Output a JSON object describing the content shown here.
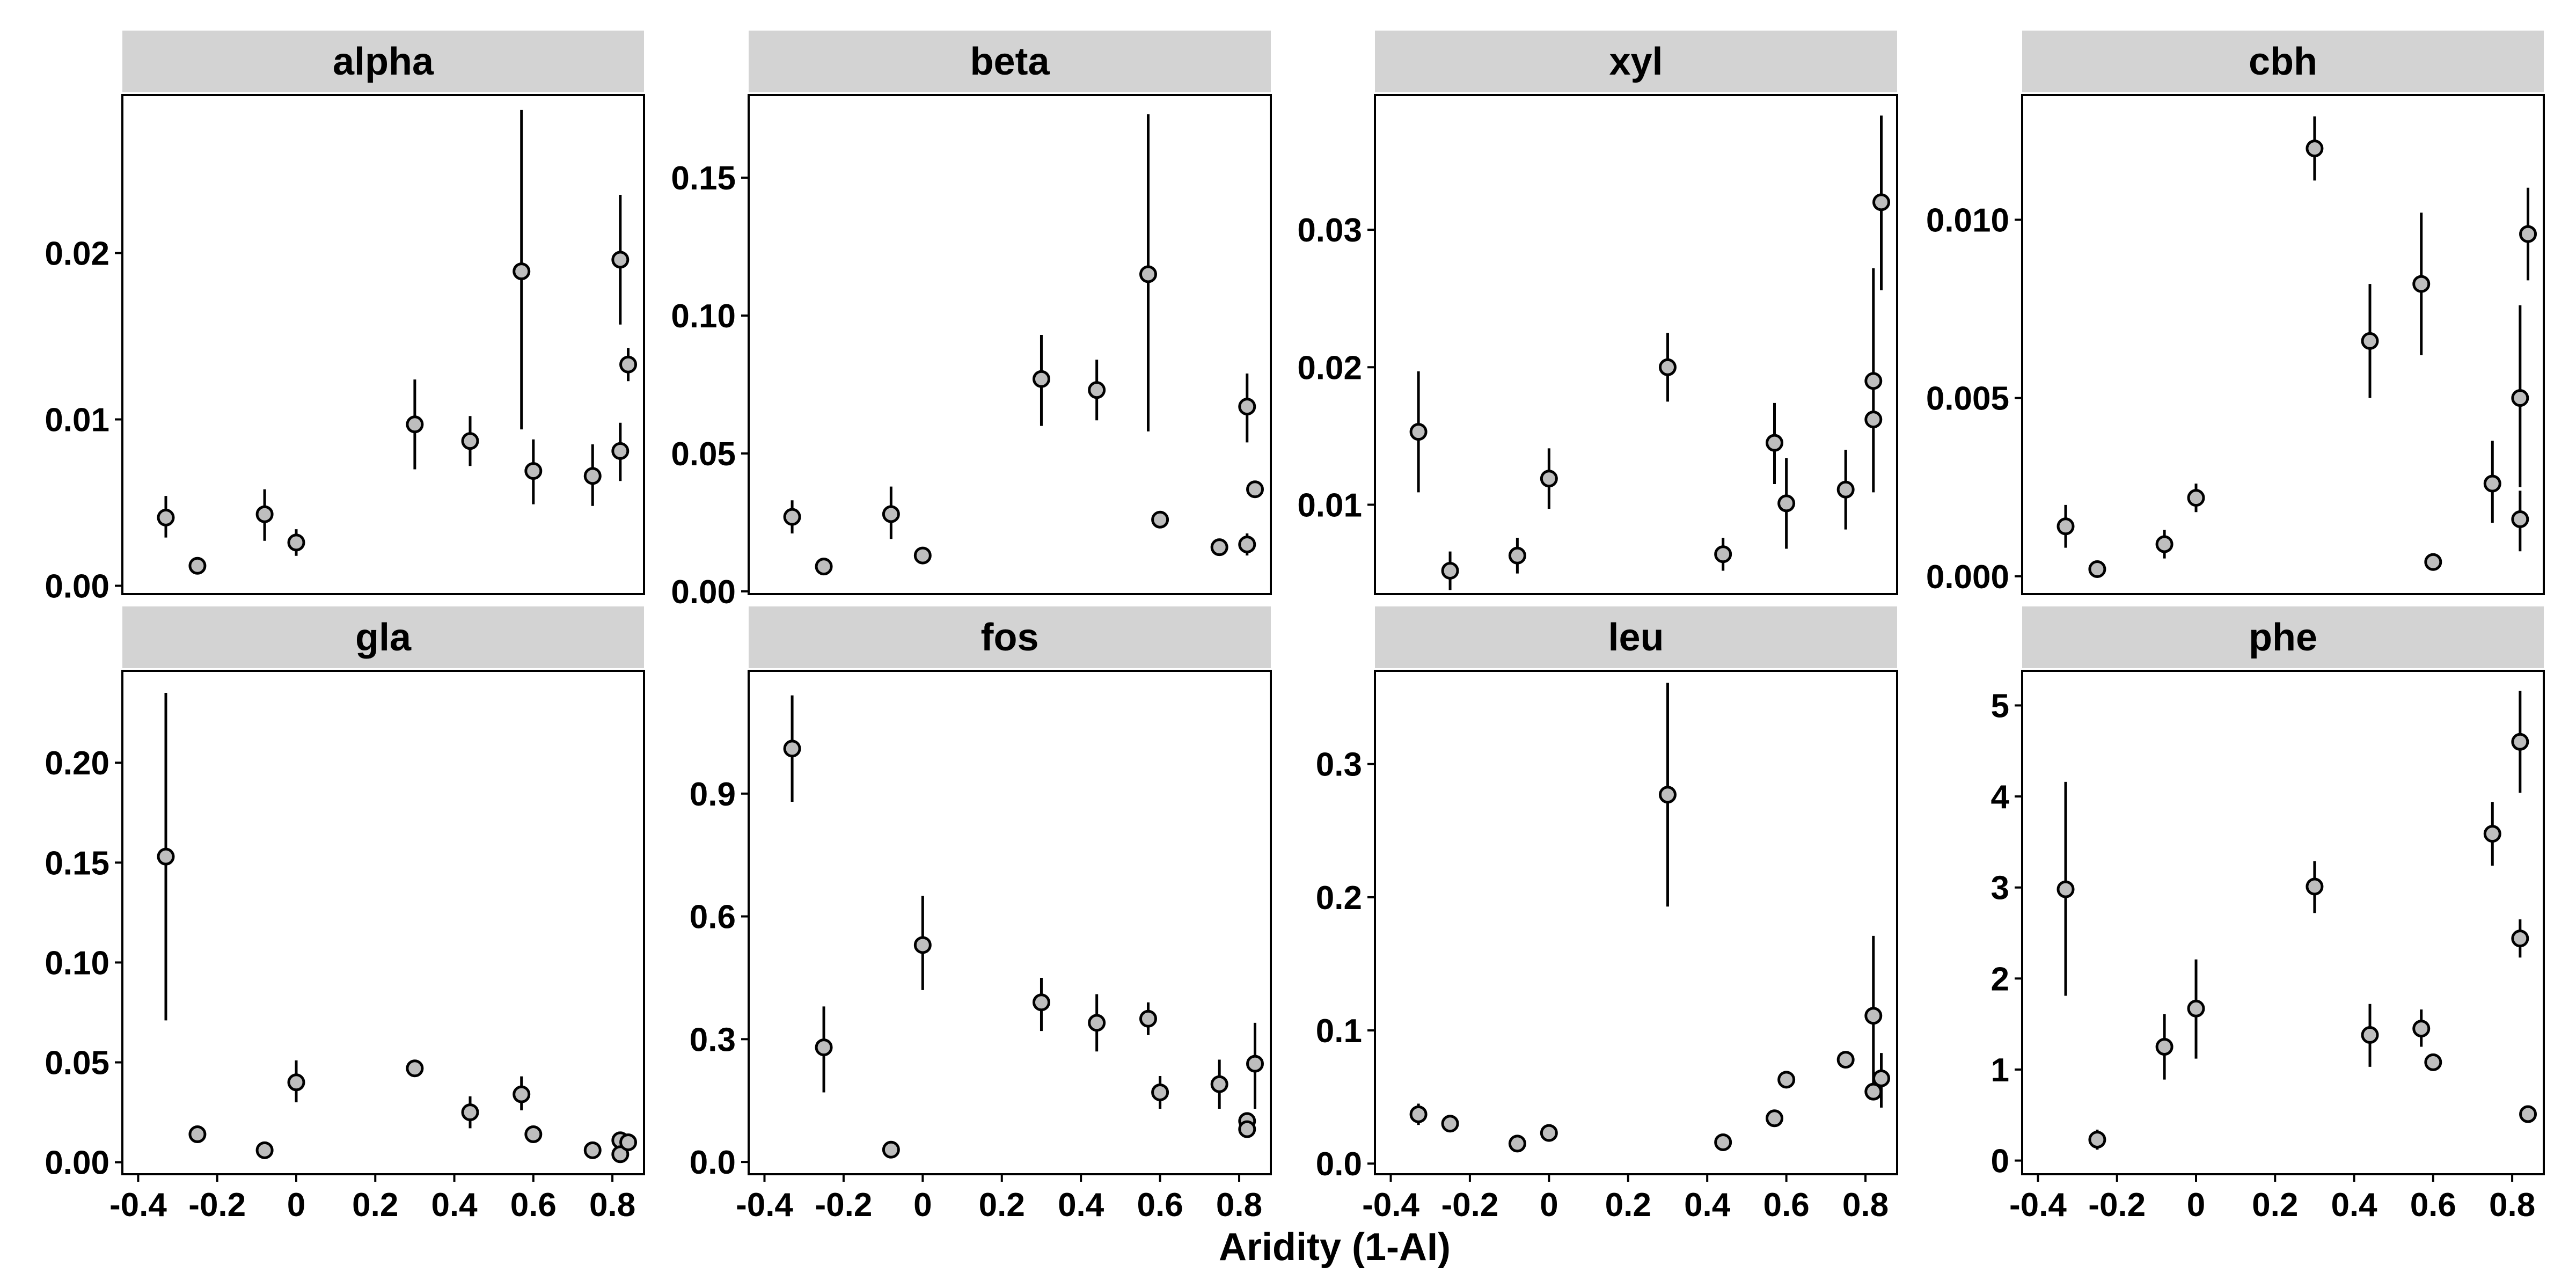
{
  "figure": {
    "xlabel": "Aridity (1-AI)",
    "background": "#ffffff",
    "strip_fill": "#d3d3d3",
    "point_fill": "#bebebe",
    "point_stroke": "#000000"
  },
  "chart_data": [
    {
      "type": "scatter",
      "title": "alpha",
      "xlim": [
        -0.44,
        0.88
      ],
      "ylim": [
        -0.0005,
        0.0295
      ],
      "yticks": [
        0.0,
        0.01,
        0.02
      ],
      "ytick_labels": [
        "0.00",
        "0.01",
        "0.02"
      ],
      "xticks": [],
      "xtick_labels": [],
      "points": [
        {
          "x": -0.33,
          "y": 0.0041,
          "lo": 0.0029,
          "hi": 0.0054
        },
        {
          "x": -0.25,
          "y": 0.0012,
          "lo": 0.0012,
          "hi": 0.0012
        },
        {
          "x": -0.08,
          "y": 0.0043,
          "lo": 0.0027,
          "hi": 0.0058
        },
        {
          "x": 0.0,
          "y": 0.0026,
          "lo": 0.0018,
          "hi": 0.0034
        },
        {
          "x": 0.3,
          "y": 0.0097,
          "lo": 0.007,
          "hi": 0.0124
        },
        {
          "x": 0.44,
          "y": 0.0087,
          "lo": 0.0072,
          "hi": 0.0102
        },
        {
          "x": 0.57,
          "y": 0.0189,
          "lo": 0.0094,
          "hi": 0.0286
        },
        {
          "x": 0.6,
          "y": 0.0069,
          "lo": 0.0049,
          "hi": 0.0088
        },
        {
          "x": 0.75,
          "y": 0.0066,
          "lo": 0.0048,
          "hi": 0.0085
        },
        {
          "x": 0.82,
          "y": 0.0196,
          "lo": 0.0157,
          "hi": 0.0235
        },
        {
          "x": 0.82,
          "y": 0.0081,
          "lo": 0.0063,
          "hi": 0.0098
        },
        {
          "x": 0.84,
          "y": 0.0133,
          "lo": 0.0123,
          "hi": 0.0143
        }
      ]
    },
    {
      "type": "scatter",
      "title": "beta",
      "xlim": [
        -0.44,
        0.88
      ],
      "ylim": [
        -0.001,
        0.18
      ],
      "yticks": [
        0.0,
        0.05,
        0.1,
        0.15
      ],
      "ytick_labels": [
        "0.00",
        "0.05",
        "0.10",
        "0.15"
      ],
      "xticks": [],
      "xtick_labels": [],
      "points": [
        {
          "x": -0.33,
          "y": 0.027,
          "lo": 0.021,
          "hi": 0.033
        },
        {
          "x": -0.25,
          "y": 0.009,
          "lo": 0.009,
          "hi": 0.009
        },
        {
          "x": -0.08,
          "y": 0.028,
          "lo": 0.019,
          "hi": 0.038
        },
        {
          "x": 0.0,
          "y": 0.013,
          "lo": 0.013,
          "hi": 0.013
        },
        {
          "x": 0.3,
          "y": 0.077,
          "lo": 0.06,
          "hi": 0.093
        },
        {
          "x": 0.44,
          "y": 0.073,
          "lo": 0.062,
          "hi": 0.084
        },
        {
          "x": 0.57,
          "y": 0.115,
          "lo": 0.058,
          "hi": 0.173
        },
        {
          "x": 0.6,
          "y": 0.026,
          "lo": 0.026,
          "hi": 0.026
        },
        {
          "x": 0.75,
          "y": 0.016,
          "lo": 0.016,
          "hi": 0.016
        },
        {
          "x": 0.82,
          "y": 0.067,
          "lo": 0.054,
          "hi": 0.079
        },
        {
          "x": 0.82,
          "y": 0.017,
          "lo": 0.013,
          "hi": 0.021
        },
        {
          "x": 0.84,
          "y": 0.037,
          "lo": 0.037,
          "hi": 0.037
        }
      ]
    },
    {
      "type": "scatter",
      "title": "xyl",
      "xlim": [
        -0.44,
        0.88
      ],
      "ylim": [
        0.0035,
        0.0398
      ],
      "yticks": [
        0.01,
        0.02,
        0.03
      ],
      "ytick_labels": [
        "0.01",
        "0.02",
        "0.03"
      ],
      "xticks": [],
      "xtick_labels": [],
      "points": [
        {
          "x": -0.33,
          "y": 0.0153,
          "lo": 0.0109,
          "hi": 0.0197
        },
        {
          "x": -0.25,
          "y": 0.0052,
          "lo": 0.0038,
          "hi": 0.0066
        },
        {
          "x": -0.08,
          "y": 0.0063,
          "lo": 0.005,
          "hi": 0.0076
        },
        {
          "x": 0.0,
          "y": 0.0119,
          "lo": 0.0097,
          "hi": 0.0141
        },
        {
          "x": 0.3,
          "y": 0.02,
          "lo": 0.0175,
          "hi": 0.0225
        },
        {
          "x": 0.44,
          "y": 0.0064,
          "lo": 0.0052,
          "hi": 0.0076
        },
        {
          "x": 0.57,
          "y": 0.0145,
          "lo": 0.0115,
          "hi": 0.0174
        },
        {
          "x": 0.6,
          "y": 0.0101,
          "lo": 0.0068,
          "hi": 0.0134
        },
        {
          "x": 0.75,
          "y": 0.0111,
          "lo": 0.0082,
          "hi": 0.014
        },
        {
          "x": 0.82,
          "y": 0.019,
          "lo": 0.0109,
          "hi": 0.0272
        },
        {
          "x": 0.82,
          "y": 0.0162,
          "lo": 0.0162,
          "hi": 0.0162
        },
        {
          "x": 0.84,
          "y": 0.032,
          "lo": 0.0256,
          "hi": 0.0383
        }
      ]
    },
    {
      "type": "scatter",
      "title": "cbh",
      "xlim": [
        -0.44,
        0.88
      ],
      "ylim": [
        -0.0005,
        0.0135
      ],
      "yticks": [
        0.0,
        0.005,
        0.01
      ],
      "ytick_labels": [
        "0.000",
        "0.005",
        "0.010"
      ],
      "xticks": [],
      "xtick_labels": [],
      "points": [
        {
          "x": -0.33,
          "y": 0.0014,
          "lo": 0.0008,
          "hi": 0.002
        },
        {
          "x": -0.25,
          "y": 0.0002,
          "lo": 0.0002,
          "hi": 0.0002
        },
        {
          "x": -0.08,
          "y": 0.0009,
          "lo": 0.0005,
          "hi": 0.0013
        },
        {
          "x": 0.0,
          "y": 0.0022,
          "lo": 0.0018,
          "hi": 0.0026
        },
        {
          "x": 0.3,
          "y": 0.012,
          "lo": 0.0111,
          "hi": 0.0129
        },
        {
          "x": 0.44,
          "y": 0.0066,
          "lo": 0.005,
          "hi": 0.0082
        },
        {
          "x": 0.57,
          "y": 0.0082,
          "lo": 0.0062,
          "hi": 0.0102
        },
        {
          "x": 0.6,
          "y": 0.0004,
          "lo": 0.0004,
          "hi": 0.0004
        },
        {
          "x": 0.75,
          "y": 0.0026,
          "lo": 0.0015,
          "hi": 0.0038
        },
        {
          "x": 0.82,
          "y": 0.005,
          "lo": 0.0025,
          "hi": 0.0076
        },
        {
          "x": 0.82,
          "y": 0.0016,
          "lo": 0.0007,
          "hi": 0.0024
        },
        {
          "x": 0.84,
          "y": 0.0096,
          "lo": 0.0083,
          "hi": 0.0109
        }
      ]
    },
    {
      "type": "scatter",
      "title": "gla",
      "xlim": [
        -0.44,
        0.88
      ],
      "ylim": [
        -0.006,
        0.246
      ],
      "yticks": [
        0.0,
        0.05,
        0.1,
        0.15,
        0.2
      ],
      "ytick_labels": [
        "0.00",
        "0.05",
        "0.10",
        "0.15",
        "0.20"
      ],
      "xticks": [
        -0.4,
        -0.2,
        0,
        0.2,
        0.4,
        0.6,
        0.8
      ],
      "xtick_labels": [
        "-0.4",
        "-0.2",
        "0",
        "0.2",
        "0.4",
        "0.6",
        "0.8"
      ],
      "points": [
        {
          "x": -0.33,
          "y": 0.153,
          "lo": 0.071,
          "hi": 0.235
        },
        {
          "x": -0.25,
          "y": 0.014,
          "lo": 0.014,
          "hi": 0.014
        },
        {
          "x": -0.08,
          "y": 0.006,
          "lo": 0.006,
          "hi": 0.006
        },
        {
          "x": 0.0,
          "y": 0.04,
          "lo": 0.03,
          "hi": 0.051
        },
        {
          "x": 0.3,
          "y": 0.047,
          "lo": 0.047,
          "hi": 0.047
        },
        {
          "x": 0.44,
          "y": 0.025,
          "lo": 0.017,
          "hi": 0.033
        },
        {
          "x": 0.57,
          "y": 0.034,
          "lo": 0.026,
          "hi": 0.043
        },
        {
          "x": 0.6,
          "y": 0.014,
          "lo": 0.014,
          "hi": 0.014
        },
        {
          "x": 0.75,
          "y": 0.006,
          "lo": 0.006,
          "hi": 0.006
        },
        {
          "x": 0.82,
          "y": 0.011,
          "lo": 0.011,
          "hi": 0.011
        },
        {
          "x": 0.82,
          "y": 0.004,
          "lo": 0.004,
          "hi": 0.004
        },
        {
          "x": 0.84,
          "y": 0.01,
          "lo": 0.01,
          "hi": 0.01
        }
      ]
    },
    {
      "type": "scatter",
      "title": "fos",
      "xlim": [
        -0.44,
        0.88
      ],
      "ylim": [
        -0.03,
        1.2
      ],
      "yticks": [
        0.0,
        0.3,
        0.6,
        0.9
      ],
      "ytick_labels": [
        "0.0",
        "0.3",
        "0.6",
        "0.9"
      ],
      "xticks": [
        -0.4,
        -0.2,
        0,
        0.2,
        0.4,
        0.6,
        0.8
      ],
      "xtick_labels": [
        "-0.4",
        "-0.2",
        "0",
        "0.2",
        "0.4",
        "0.6",
        "0.8"
      ],
      "points": [
        {
          "x": -0.33,
          "y": 1.01,
          "lo": 0.88,
          "hi": 1.14
        },
        {
          "x": -0.25,
          "y": 0.28,
          "lo": 0.17,
          "hi": 0.38
        },
        {
          "x": -0.08,
          "y": 0.03,
          "lo": 0.03,
          "hi": 0.03
        },
        {
          "x": 0.0,
          "y": 0.53,
          "lo": 0.42,
          "hi": 0.65
        },
        {
          "x": 0.3,
          "y": 0.39,
          "lo": 0.32,
          "hi": 0.45
        },
        {
          "x": 0.44,
          "y": 0.34,
          "lo": 0.27,
          "hi": 0.41
        },
        {
          "x": 0.57,
          "y": 0.35,
          "lo": 0.31,
          "hi": 0.39
        },
        {
          "x": 0.6,
          "y": 0.17,
          "lo": 0.13,
          "hi": 0.21
        },
        {
          "x": 0.75,
          "y": 0.19,
          "lo": 0.13,
          "hi": 0.25
        },
        {
          "x": 0.82,
          "y": 0.1,
          "lo": 0.1,
          "hi": 0.1
        },
        {
          "x": 0.82,
          "y": 0.08,
          "lo": 0.08,
          "hi": 0.08
        },
        {
          "x": 0.84,
          "y": 0.24,
          "lo": 0.13,
          "hi": 0.34
        }
      ]
    },
    {
      "type": "scatter",
      "title": "leu",
      "xlim": [
        -0.44,
        0.88
      ],
      "ylim": [
        -0.008,
        0.37
      ],
      "yticks": [
        0.0,
        0.1,
        0.2,
        0.3
      ],
      "ytick_labels": [
        "0.0",
        "0.1",
        "0.2",
        "0.3"
      ],
      "xticks": [
        -0.4,
        -0.2,
        0,
        0.2,
        0.4,
        0.6,
        0.8
      ],
      "xtick_labels": [
        "-0.4",
        "-0.2",
        "0",
        "0.2",
        "0.4",
        "0.6",
        "0.8"
      ],
      "points": [
        {
          "x": -0.33,
          "y": 0.037,
          "lo": 0.029,
          "hi": 0.045
        },
        {
          "x": -0.25,
          "y": 0.03,
          "lo": 0.03,
          "hi": 0.03
        },
        {
          "x": -0.08,
          "y": 0.015,
          "lo": 0.015,
          "hi": 0.015
        },
        {
          "x": 0.0,
          "y": 0.023,
          "lo": 0.023,
          "hi": 0.023
        },
        {
          "x": 0.3,
          "y": 0.277,
          "lo": 0.193,
          "hi": 0.361
        },
        {
          "x": 0.44,
          "y": 0.016,
          "lo": 0.016,
          "hi": 0.016
        },
        {
          "x": 0.57,
          "y": 0.034,
          "lo": 0.034,
          "hi": 0.034
        },
        {
          "x": 0.6,
          "y": 0.063,
          "lo": 0.063,
          "hi": 0.063
        },
        {
          "x": 0.75,
          "y": 0.078,
          "lo": 0.078,
          "hi": 0.078
        },
        {
          "x": 0.82,
          "y": 0.111,
          "lo": 0.052,
          "hi": 0.171
        },
        {
          "x": 0.82,
          "y": 0.054,
          "lo": 0.054,
          "hi": 0.054
        },
        {
          "x": 0.84,
          "y": 0.064,
          "lo": 0.042,
          "hi": 0.083
        }
      ]
    },
    {
      "type": "scatter",
      "title": "phe",
      "xlim": [
        -0.44,
        0.88
      ],
      "ylim": [
        -0.15,
        5.38
      ],
      "yticks": [
        0,
        1,
        2,
        3,
        4,
        5
      ],
      "ytick_labels": [
        "0",
        "1",
        "2",
        "3",
        "4",
        "5"
      ],
      "xticks": [
        -0.4,
        -0.2,
        0,
        0.2,
        0.4,
        0.6,
        0.8
      ],
      "xtick_labels": [
        "-0.4",
        "-0.2",
        "0",
        "0.2",
        "0.4",
        "0.6",
        "0.8"
      ],
      "points": [
        {
          "x": -0.33,
          "y": 2.98,
          "lo": 1.81,
          "hi": 4.16
        },
        {
          "x": -0.25,
          "y": 0.23,
          "lo": 0.12,
          "hi": 0.34
        },
        {
          "x": -0.08,
          "y": 1.25,
          "lo": 0.89,
          "hi": 1.61
        },
        {
          "x": 0.0,
          "y": 1.67,
          "lo": 1.12,
          "hi": 2.21
        },
        {
          "x": 0.3,
          "y": 3.01,
          "lo": 2.72,
          "hi": 3.29
        },
        {
          "x": 0.44,
          "y": 1.38,
          "lo": 1.03,
          "hi": 1.72
        },
        {
          "x": 0.57,
          "y": 1.45,
          "lo": 1.25,
          "hi": 1.66
        },
        {
          "x": 0.6,
          "y": 1.08,
          "lo": 1.08,
          "hi": 1.08
        },
        {
          "x": 0.75,
          "y": 3.59,
          "lo": 3.24,
          "hi": 3.94
        },
        {
          "x": 0.82,
          "y": 4.6,
          "lo": 4.04,
          "hi": 5.16
        },
        {
          "x": 0.82,
          "y": 2.44,
          "lo": 2.23,
          "hi": 2.65
        },
        {
          "x": 0.84,
          "y": 0.51,
          "lo": 0.51,
          "hi": 0.51
        }
      ]
    }
  ]
}
